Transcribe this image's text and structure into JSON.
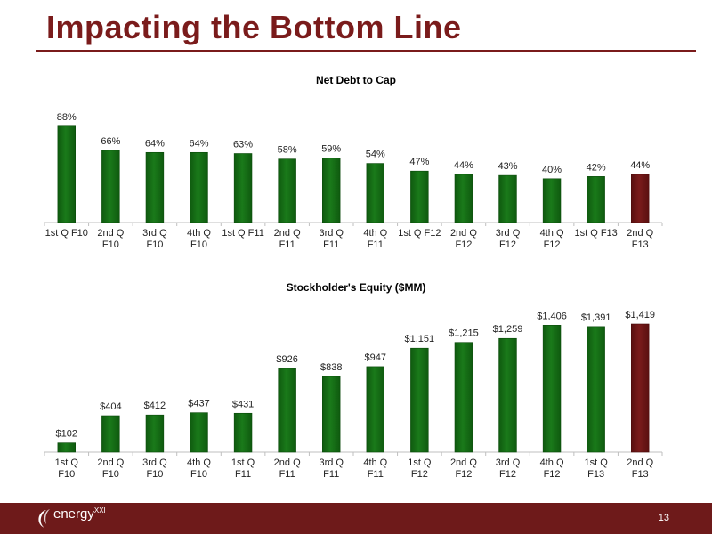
{
  "page": {
    "title": "Impacting the Bottom Line",
    "page_number": "13",
    "logo_main": "energy",
    "logo_sup": "XXI"
  },
  "colors": {
    "title": "#7a1b1b",
    "bar_green": "#1a7a1a",
    "bar_highlight": "#7a1b1b",
    "footer": "#6e1a1a"
  },
  "chart_data": [
    {
      "type": "bar",
      "title": "Net Debt to Cap",
      "categories": [
        "1st Q F10",
        "2nd Q F10",
        "3rd Q F10",
        "4th Q F10",
        "1st Q F11",
        "2nd Q F11",
        "3rd Q F11",
        "4th Q F11",
        "1st Q F12",
        "2nd Q F12",
        "3rd Q F12",
        "4th Q F12",
        "1st Q F13",
        "2nd Q F13"
      ],
      "category_lines": [
        [
          "1st Q F10"
        ],
        [
          "2nd Q",
          "F10"
        ],
        [
          "3rd Q",
          "F10"
        ],
        [
          "4th Q",
          "F10"
        ],
        [
          "1st Q F11"
        ],
        [
          "2nd Q",
          "F11"
        ],
        [
          "3rd Q",
          "F11"
        ],
        [
          "4th Q",
          "F11"
        ],
        [
          "1st Q F12"
        ],
        [
          "2nd Q",
          "F12"
        ],
        [
          "3rd Q",
          "F12"
        ],
        [
          "4th Q",
          "F12"
        ],
        [
          "1st Q F13"
        ],
        [
          "2nd Q",
          "F13"
        ]
      ],
      "values": [
        88,
        66,
        64,
        64,
        63,
        58,
        59,
        54,
        47,
        44,
        43,
        40,
        42,
        44
      ],
      "labels": [
        "88%",
        "66%",
        "64%",
        "64%",
        "63%",
        "58%",
        "59%",
        "54%",
        "47%",
        "44%",
        "43%",
        "40%",
        "42%",
        "44%"
      ],
      "ylim": [
        0,
        100
      ],
      "highlight_index": 13,
      "grid": false,
      "legend": "none"
    },
    {
      "type": "bar",
      "title": "Stockholder's Equity ($MM)",
      "categories": [
        "1st Q F10",
        "2nd Q F10",
        "3rd Q F10",
        "4th Q F10",
        "1st Q F11",
        "2nd Q F11",
        "3rd Q F11",
        "4th Q F11",
        "1st Q F12",
        "2nd Q F12",
        "3rd Q F12",
        "4th Q F12",
        "1st Q F13",
        "2nd Q F13"
      ],
      "category_lines": [
        [
          "1st Q",
          "F10"
        ],
        [
          "2nd Q",
          "F10"
        ],
        [
          "3rd Q",
          "F10"
        ],
        [
          "4th Q",
          "F10"
        ],
        [
          "1st Q",
          "F11"
        ],
        [
          "2nd Q",
          "F11"
        ],
        [
          "3rd Q",
          "F11"
        ],
        [
          "4th Q",
          "F11"
        ],
        [
          "1st Q",
          "F12"
        ],
        [
          "2nd Q",
          "F12"
        ],
        [
          "3rd Q",
          "F12"
        ],
        [
          "4th Q",
          "F12"
        ],
        [
          "1st Q",
          "F13"
        ],
        [
          "2nd Q",
          "F13"
        ]
      ],
      "values": [
        102,
        404,
        412,
        437,
        431,
        926,
        838,
        947,
        1151,
        1215,
        1259,
        1406,
        1391,
        1419
      ],
      "labels": [
        "$102",
        "$404",
        "$412",
        "$437",
        "$431",
        "$926",
        "$838",
        "$947",
        "$1,151",
        "$1,215",
        "$1,259",
        "$1,406",
        "$1,391",
        "$1,419"
      ],
      "ylim": [
        0,
        1419
      ],
      "highlight_index": 13,
      "grid": false,
      "legend": "none"
    }
  ]
}
